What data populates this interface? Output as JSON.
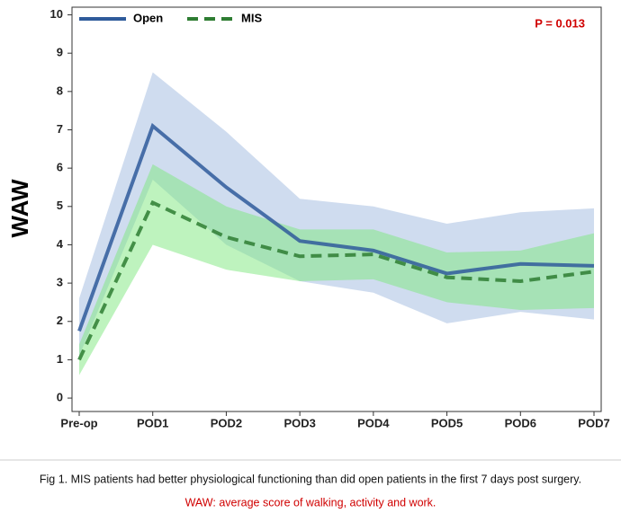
{
  "chart_data": {
    "type": "line",
    "y_label": "WAW",
    "annotation": "P = 0.013",
    "caption": "Fig 1. MIS patients had better physiological functioning than did open patients in the first 7 days post surgery.",
    "caption_note": "WAW: average score of walking, activity and work.",
    "categories": [
      "Pre-op",
      "POD1",
      "POD2",
      "POD3",
      "POD4",
      "POD5",
      "POD6",
      "POD7"
    ],
    "series": [
      {
        "name": "Open",
        "color": "#2f5b9b",
        "band_color": "#9fb9e0",
        "dashed": false,
        "values": [
          1.75,
          7.1,
          5.5,
          4.1,
          3.85,
          3.25,
          3.5,
          3.45
        ],
        "upper": [
          2.6,
          8.5,
          6.95,
          5.2,
          5.0,
          4.55,
          4.85,
          4.95
        ],
        "lower": [
          1.1,
          5.7,
          4.0,
          3.05,
          2.75,
          1.95,
          2.25,
          2.05
        ]
      },
      {
        "name": "MIS",
        "color": "#2e7d32",
        "band_color": "#7de87d",
        "dashed": true,
        "values": [
          1.0,
          5.1,
          4.2,
          3.7,
          3.75,
          3.15,
          3.05,
          3.3
        ],
        "upper": [
          1.4,
          6.1,
          5.0,
          4.4,
          4.4,
          3.8,
          3.85,
          4.3
        ],
        "lower": [
          0.6,
          4.0,
          3.35,
          3.05,
          3.1,
          2.5,
          2.3,
          2.35
        ]
      }
    ],
    "ylim": [
      -0.35,
      10.2
    ],
    "yticks": [
      0,
      1,
      2,
      3,
      4,
      5,
      6,
      7,
      8,
      9,
      10
    ],
    "legend": "top-left"
  }
}
